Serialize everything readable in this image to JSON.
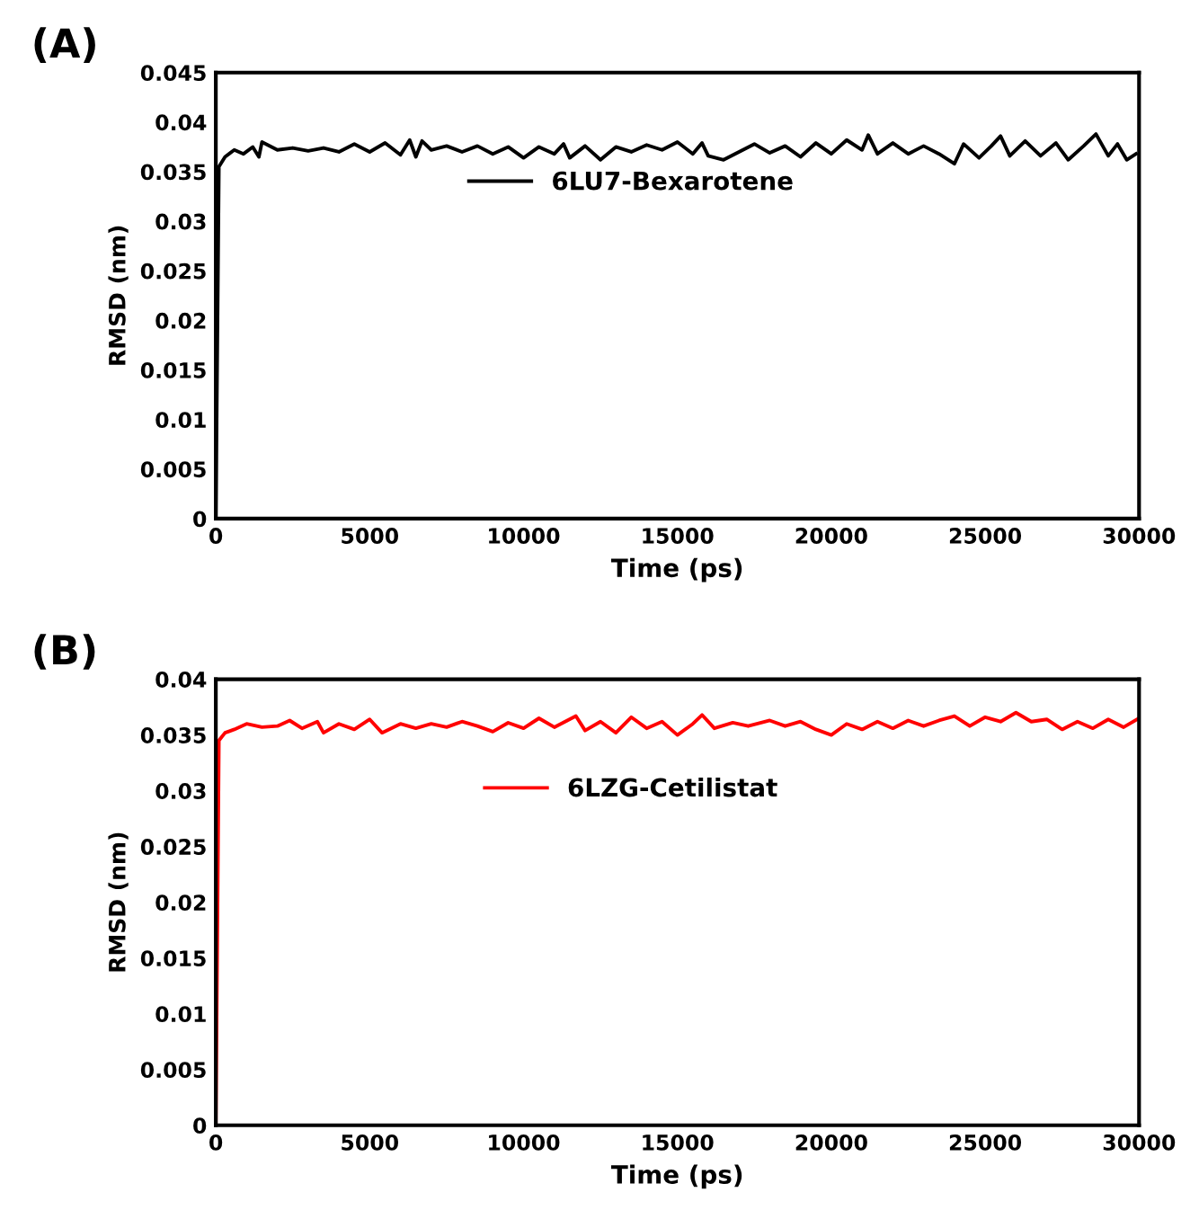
{
  "chart_data": [
    {
      "type": "line",
      "title": "(A)",
      "xlabel": "Time (ps)",
      "ylabel": "RMSD (nm)",
      "legend": "top",
      "grid": false,
      "line_style": "solid",
      "marker": "none",
      "xlim": [
        0,
        30000
      ],
      "xticks": [
        0,
        5000,
        10000,
        15000,
        20000,
        25000,
        30000
      ],
      "ylim": [
        0,
        0.045
      ],
      "yticks": [
        0,
        0.005,
        0.01,
        0.015,
        0.02,
        0.025,
        0.03,
        0.035,
        0.04,
        0.045
      ],
      "series": [
        {
          "name": "6LU7-Bexarotene",
          "color": "#000000",
          "x": [
            0,
            100,
            300,
            600,
            900,
            1200,
            1400,
            1500,
            2000,
            2500,
            3000,
            3500,
            4000,
            4500,
            5000,
            5500,
            6000,
            6300,
            6500,
            6700,
            7000,
            7500,
            8000,
            8500,
            9000,
            9500,
            10000,
            10500,
            11000,
            11300,
            11500,
            12000,
            12500,
            13000,
            13500,
            14000,
            14500,
            15000,
            15500,
            15800,
            16000,
            16500,
            17000,
            17500,
            18000,
            18500,
            19000,
            19500,
            20000,
            20500,
            21000,
            21200,
            21500,
            22000,
            22500,
            23000,
            23500,
            24000,
            24300,
            24800,
            25200,
            25500,
            25800,
            26300,
            26800,
            27300,
            27700,
            28200,
            28600,
            29000,
            29300,
            29600,
            29900
          ],
          "values": [
            0,
            0.0355,
            0.0365,
            0.0372,
            0.0368,
            0.0375,
            0.0365,
            0.038,
            0.0372,
            0.0374,
            0.0371,
            0.0374,
            0.037,
            0.0378,
            0.037,
            0.0379,
            0.0367,
            0.0382,
            0.0365,
            0.0381,
            0.0372,
            0.0376,
            0.037,
            0.0376,
            0.0368,
            0.0375,
            0.0364,
            0.0375,
            0.0368,
            0.0378,
            0.0364,
            0.0376,
            0.0362,
            0.0375,
            0.037,
            0.0377,
            0.0372,
            0.038,
            0.0368,
            0.0379,
            0.0366,
            0.0362,
            0.037,
            0.0378,
            0.0369,
            0.0376,
            0.0365,
            0.0379,
            0.0368,
            0.0382,
            0.0372,
            0.0387,
            0.0368,
            0.0379,
            0.0368,
            0.0376,
            0.0368,
            0.0358,
            0.0378,
            0.0364,
            0.0376,
            0.0386,
            0.0366,
            0.0381,
            0.0366,
            0.0379,
            0.0362,
            0.0376,
            0.0388,
            0.0366,
            0.0378,
            0.0362,
            0.0368
          ]
        }
      ]
    },
    {
      "type": "line",
      "title": "(B)",
      "xlabel": "Time (ps)",
      "ylabel": "RMSD (nm)",
      "legend": "top",
      "grid": false,
      "line_style": "solid",
      "marker": "none",
      "xlim": [
        0,
        30000
      ],
      "xticks": [
        0,
        5000,
        10000,
        15000,
        20000,
        25000,
        30000
      ],
      "ylim": [
        0,
        0.04
      ],
      "yticks": [
        0,
        0.005,
        0.01,
        0.015,
        0.02,
        0.025,
        0.03,
        0.035,
        0.04
      ],
      "series": [
        {
          "name": "6LZG-Cetilistat",
          "color": "#ff0000",
          "x": [
            0,
            100,
            300,
            600,
            1000,
            1500,
            2000,
            2400,
            2800,
            3300,
            3500,
            4000,
            4500,
            5000,
            5400,
            6000,
            6500,
            7000,
            7500,
            8000,
            8500,
            9000,
            9500,
            10000,
            10500,
            11000,
            11700,
            12000,
            12500,
            13000,
            13500,
            14000,
            14500,
            15000,
            15500,
            15800,
            16200,
            16800,
            17300,
            18000,
            18500,
            19000,
            19500,
            20000,
            20500,
            21000,
            21500,
            22000,
            22500,
            23000,
            23500,
            24000,
            24500,
            25000,
            25500,
            26000,
            26500,
            27000,
            27500,
            28000,
            28500,
            29000,
            29500,
            30000
          ],
          "values": [
            0,
            0.0345,
            0.0352,
            0.0355,
            0.036,
            0.0357,
            0.0358,
            0.0363,
            0.0356,
            0.0362,
            0.0352,
            0.036,
            0.0355,
            0.0364,
            0.0352,
            0.036,
            0.0356,
            0.036,
            0.0357,
            0.0362,
            0.0358,
            0.0353,
            0.0361,
            0.0356,
            0.0365,
            0.0357,
            0.0367,
            0.0354,
            0.0362,
            0.0352,
            0.0366,
            0.0356,
            0.0362,
            0.035,
            0.036,
            0.0368,
            0.0356,
            0.0361,
            0.0358,
            0.0363,
            0.0358,
            0.0362,
            0.0355,
            0.035,
            0.036,
            0.0355,
            0.0362,
            0.0356,
            0.0363,
            0.0358,
            0.0363,
            0.0367,
            0.0358,
            0.0366,
            0.0362,
            0.037,
            0.0362,
            0.0364,
            0.0355,
            0.0362,
            0.0356,
            0.0364,
            0.0357,
            0.0365
          ]
        }
      ]
    }
  ]
}
